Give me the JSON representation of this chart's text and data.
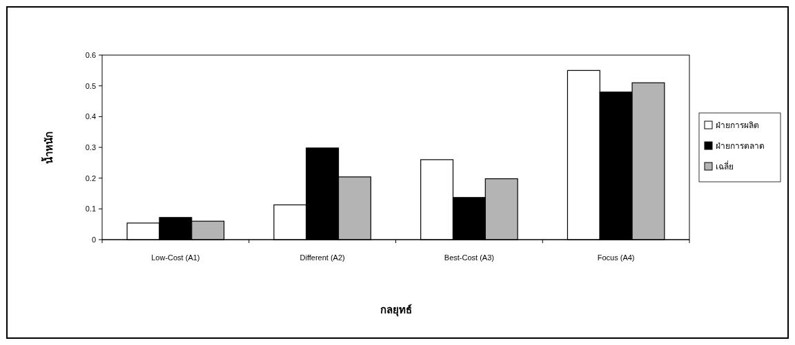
{
  "chart_data": {
    "type": "bar",
    "xlabel": "กลยุทธ์",
    "ylabel": "น้ำหนัก",
    "categories": [
      "Low-Cost (A1)",
      "Different (A2)",
      "Best-Cost (A3)",
      "Focus (A4)"
    ],
    "series": [
      {
        "name": "ฝ่ายการผลิต",
        "color": "#ffffff",
        "values": [
          0.054,
          0.113,
          0.26,
          0.55
        ]
      },
      {
        "name": "ฝ่ายการตลาด",
        "color": "#000000",
        "values": [
          0.072,
          0.298,
          0.137,
          0.48
        ]
      },
      {
        "name": "เฉลี่ย",
        "color": "#b4b4b4",
        "values": [
          0.06,
          0.204,
          0.198,
          0.51
        ]
      }
    ],
    "ylim": [
      0,
      0.6
    ],
    "yticks": [
      0,
      0.1,
      0.2,
      0.3,
      0.4,
      0.5,
      0.6
    ],
    "legend": "right"
  }
}
